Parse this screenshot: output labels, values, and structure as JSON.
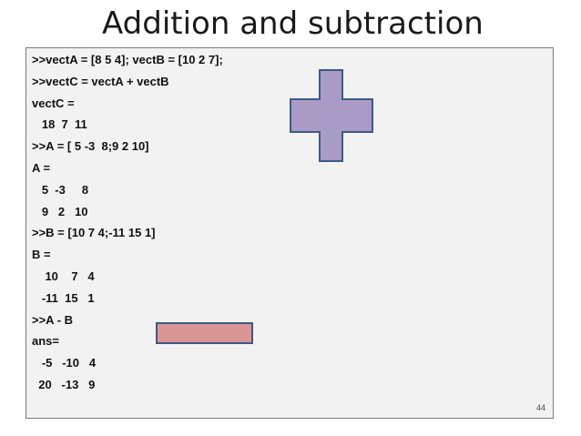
{
  "slide": {
    "title": "Addition and subtraction",
    "page_number": "44"
  },
  "console": {
    "lines": [
      ">>vectA = [8 5 4]; vectB = [10 2 7];",
      ">>vectC = vectA + vectB",
      "vectC =",
      "   18  7  11",
      ">>A = [ 5 -3  8;9 2 10]",
      "A =",
      "   5  -3     8",
      "   9   2   10",
      ">>B = [10 7 4;-11 15 1]",
      "B =",
      "    10    7   4",
      "   -11  15   1",
      ">>A - B",
      "ans=",
      "   -5   -10   4",
      "  20   -13   9"
    ]
  },
  "shapes": {
    "plus_fill": "#a99bc6",
    "plus_stroke": "#3b5a87",
    "minus_fill": "#d99694",
    "minus_stroke": "#3b5a87"
  }
}
